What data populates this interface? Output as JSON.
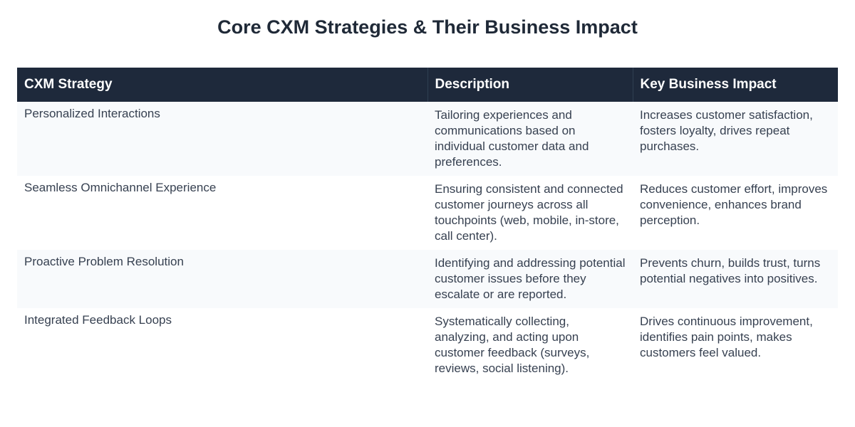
{
  "title": "Core CXM Strategies & Their Business Impact",
  "table": {
    "headers": [
      "CXM Strategy",
      "Description",
      "Key Business Impact"
    ],
    "rows": [
      {
        "strategy": "Personalized Interactions",
        "description": "Tailoring experiences and communications based on individual customer data and preferences.",
        "impact": "Increases customer satisfaction, fosters loyalty, drives repeat purchases."
      },
      {
        "strategy": "Seamless Omnichannel Experience",
        "description": "Ensuring consistent and connected customer journeys across all touchpoints (web, mobile, in-store, call center).",
        "impact": "Reduces customer effort, improves convenience, enhances brand perception."
      },
      {
        "strategy": "Proactive Problem Resolution",
        "description": "Identifying and addressing potential customer issues before they escalate or are reported.",
        "impact": "Prevents churn, builds trust, turns potential negatives into positives."
      },
      {
        "strategy": "Integrated Feedback Loops",
        "description": "Systematically collecting, analyzing, and acting upon customer feedback (surveys, reviews, social listening).",
        "impact": "Drives continuous improvement, identifies pain points, makes customers feel valued."
      }
    ]
  },
  "colors": {
    "header_bg": "#1e293b",
    "header_text": "#ffffff",
    "stripe_bg": "#f8fafc",
    "body_text": "#374151",
    "title_text": "#1f2937"
  }
}
